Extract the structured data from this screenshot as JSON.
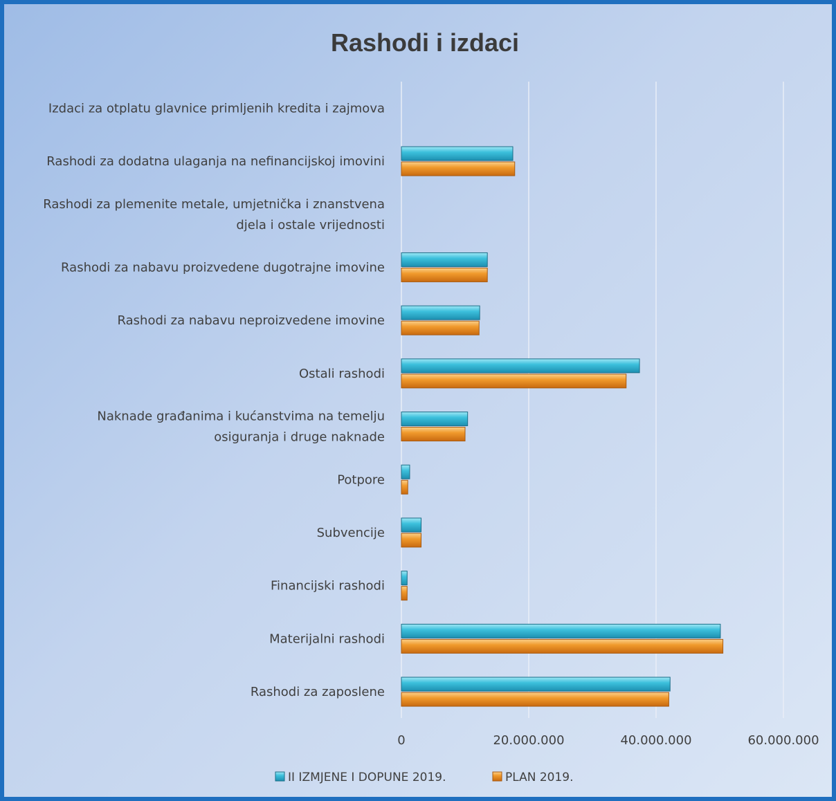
{
  "chart_data": {
    "type": "bar",
    "orientation": "horizontal",
    "title": "Rashodi i izdaci",
    "categories": [
      "Rashodi za zaposlene",
      "Materijalni rashodi",
      "Financijski rashodi",
      "Subvencije",
      "Potpore",
      "Naknade građanima i kućanstvima na temelju osiguranja i druge naknade",
      "Ostali rashodi",
      "Rashodi za nabavu neproizvedene imovine",
      "Rashodi za nabavu proizvedene dugotrajne imovine",
      "Rashodi za plemenite metale, umjetnička i znanstvena djela i ostale vrijednosti",
      "Rashodi za dodatna ulaganja na nefinancijskoj imovini",
      "Izdaci za otplatu glavnice primljenih kredita i zajmova"
    ],
    "category_lines": [
      [
        "Rashodi za zaposlene"
      ],
      [
        "Materijalni rashodi"
      ],
      [
        "Financijski rashodi"
      ],
      [
        "Subvencije"
      ],
      [
        "Potpore"
      ],
      [
        "Naknade građanima i kućanstvima na temelju",
        "osiguranja i druge naknade"
      ],
      [
        "Ostali rashodi"
      ],
      [
        "Rashodi za nabavu neproizvedene imovine"
      ],
      [
        "Rashodi za nabavu proizvedene dugotrajne imovine"
      ],
      [
        "Rashodi za plemenite metale, umjetnička i znanstvena",
        "djela i ostale vrijednosti"
      ],
      [
        "Rashodi za dodatna ulaganja na nefinancijskoj imovini"
      ],
      [
        "Izdaci za otplatu glavnice primljenih kredita i zajmova"
      ]
    ],
    "series": [
      {
        "name": "II IZMJENE I DOPUNE 2019.",
        "color": "#3cc0dc",
        "values": [
          42200000,
          50100000,
          900000,
          3100000,
          1300000,
          10400000,
          37400000,
          12300000,
          13500000,
          0,
          17500000,
          0
        ]
      },
      {
        "name": "PLAN 2019.",
        "color": "#f09a2c",
        "values": [
          42000000,
          50500000,
          900000,
          3100000,
          1000000,
          10000000,
          35300000,
          12200000,
          13500000,
          0,
          17800000,
          0
        ]
      }
    ],
    "xlim": [
      0,
      60000000
    ],
    "xticks": [
      0,
      20000000,
      40000000,
      60000000
    ],
    "xtick_labels": [
      "0",
      "20.000.000",
      "40.000.000",
      "60.000.000"
    ],
    "grid": true,
    "legend_position": "bottom"
  }
}
